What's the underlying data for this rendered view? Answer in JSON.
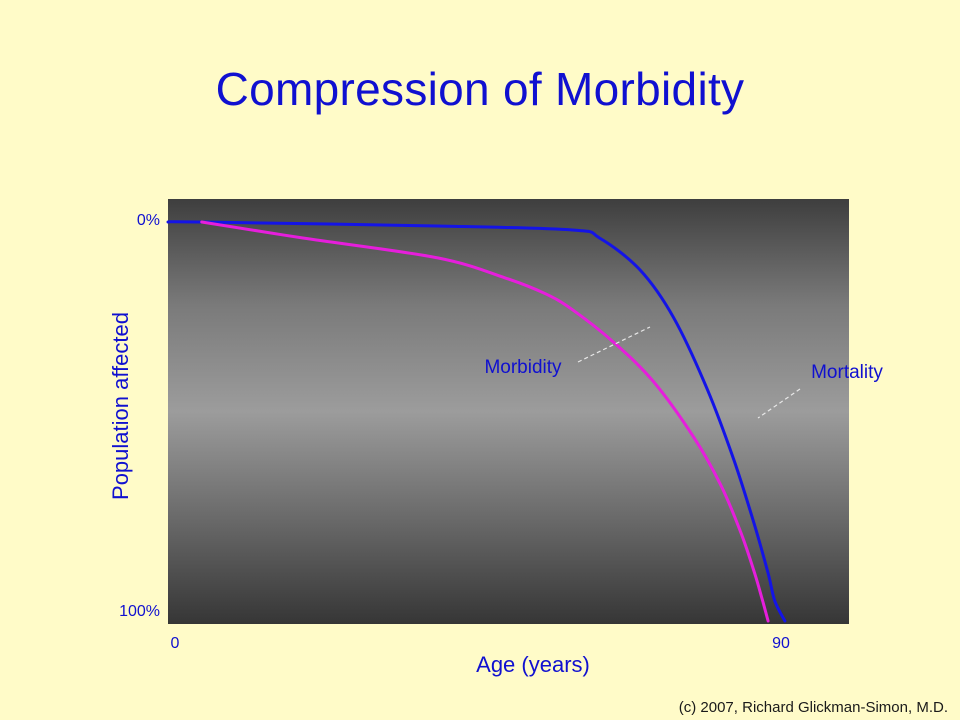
{
  "slide": {
    "title": "Compression of Morbidity",
    "credit": "(c) 2007, Richard Glickman-Simon, M.D.",
    "background_color": "#FFFBC8",
    "accent_color": "#1010D0"
  },
  "chart_data": {
    "type": "line",
    "title": "Compression of Morbidity",
    "xlabel": "Age (years)",
    "ylabel": "Population affected",
    "x_tick_labels": [
      "0",
      "90"
    ],
    "y_tick_labels": [
      "0%",
      "100%"
    ],
    "xlim": [
      0,
      101
    ],
    "ylim": [
      0,
      100
    ],
    "y_inverted": true,
    "grid": false,
    "plot_background": "gray vertical gradient, dark edges, light center",
    "series": [
      {
        "name": "Mortality",
        "color": "#1414E6",
        "x": [
          0,
          5,
          40,
          60,
          64,
          70,
          75,
          80,
          84,
          87,
          89,
          90,
          91.5
        ],
        "y": [
          0,
          0,
          1,
          2,
          4,
          12,
          24,
          42,
          60,
          76,
          88,
          95,
          100
        ]
      },
      {
        "name": "Morbidity",
        "color": "#E61EDC",
        "x": [
          5,
          20,
          40,
          50,
          56,
          60,
          66,
          72,
          78,
          82,
          85,
          87,
          88.2,
          89
        ],
        "y": [
          0,
          4,
          9,
          14,
          18,
          22,
          30,
          40,
          54,
          66,
          78,
          88,
          95,
          100
        ]
      }
    ],
    "annotations": [
      {
        "text": "Morbidity",
        "series": "Morbidity",
        "color": "#1010D0"
      },
      {
        "text": "Mortality",
        "series": "Mortality",
        "color": "#1010D0"
      }
    ]
  }
}
